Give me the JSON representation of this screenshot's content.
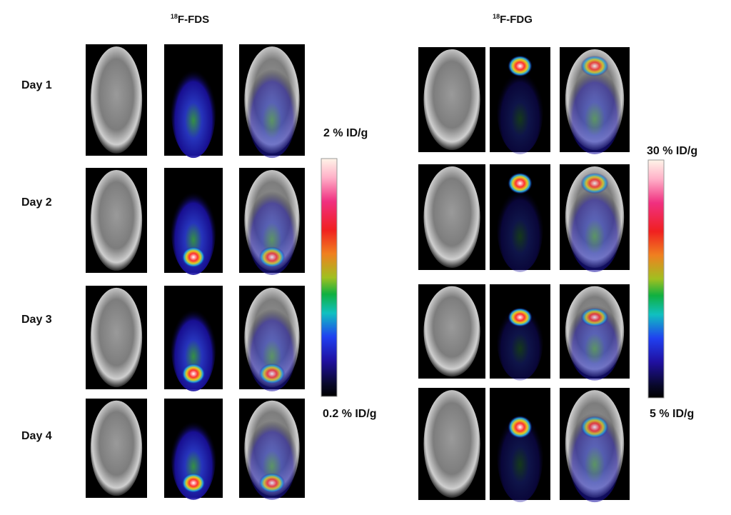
{
  "panels": [
    {
      "title": {
        "superscript": "18",
        "text": "F-FDS"
      },
      "scale": {
        "max_label": "2 % ID/g",
        "min_label": "0.2 % ID/g"
      }
    },
    {
      "title": {
        "superscript": "18",
        "text": "F-FDG"
      },
      "scale": {
        "max_label": "30 % ID/g",
        "min_label": "5 % ID/g"
      }
    }
  ],
  "row_labels": [
    "Day 1",
    "Day 2",
    "Day 3",
    "Day 4"
  ]
}
